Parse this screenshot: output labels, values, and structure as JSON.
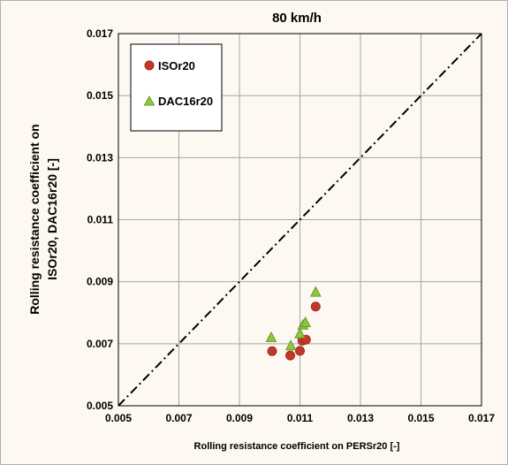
{
  "chart_data": {
    "type": "scatter",
    "title": "80 km/h",
    "xlabel": "Rolling resistance coefficient on PERSr20 [-]",
    "ylabel_line1": "Rolling resistance coefficient on",
    "ylabel_line2": "ISOr20, DAC16r20  [-]",
    "xlim": [
      0.005,
      0.017
    ],
    "ylim": [
      0.005,
      0.017
    ],
    "xticks": [
      "0.005",
      "0.007",
      "0.009",
      "0.011",
      "0.013",
      "0.015",
      "0.017"
    ],
    "yticks": [
      "0.005",
      "0.007",
      "0.009",
      "0.011",
      "0.013",
      "0.015",
      "0.017"
    ],
    "grid": true,
    "legend_position": "top-left",
    "reference_line": {
      "style": "dash-dot",
      "x": [
        0.005,
        0.017
      ],
      "y": [
        0.005,
        0.017
      ]
    },
    "series": [
      {
        "name": "ISOr20",
        "marker": "circle",
        "color": "#c0392b",
        "points": [
          [
            0.01008,
            0.00676
          ],
          [
            0.01068,
            0.00662
          ],
          [
            0.011,
            0.00677
          ],
          [
            0.01108,
            0.0071
          ],
          [
            0.0112,
            0.00713
          ],
          [
            0.01152,
            0.0082
          ]
        ]
      },
      {
        "name": "DAC16r20",
        "marker": "triangle",
        "color": "#8dc63f",
        "points": [
          [
            0.01005,
            0.0072
          ],
          [
            0.0107,
            0.00693
          ],
          [
            0.011,
            0.00732
          ],
          [
            0.0111,
            0.0076
          ],
          [
            0.01118,
            0.00768
          ],
          [
            0.01152,
            0.00866
          ]
        ]
      }
    ]
  }
}
